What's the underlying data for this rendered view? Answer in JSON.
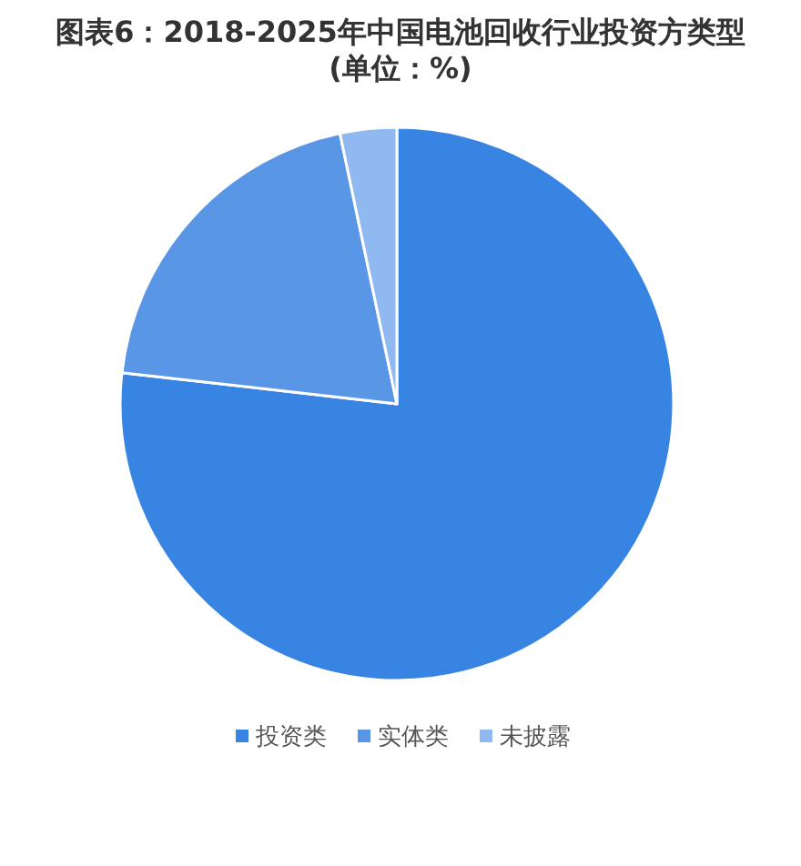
{
  "chart_data": {
    "type": "pie",
    "title": "图表6：2018-2025年中国电池回收行业投资方类型(单位：%)",
    "categories": [
      "投资类",
      "实体类",
      "未披露"
    ],
    "values": [
      76.8,
      19.9,
      3.3
    ],
    "colors": [
      "#3884e2",
      "#5a96e6",
      "#8fb9f0"
    ],
    "legend": "bottom"
  }
}
